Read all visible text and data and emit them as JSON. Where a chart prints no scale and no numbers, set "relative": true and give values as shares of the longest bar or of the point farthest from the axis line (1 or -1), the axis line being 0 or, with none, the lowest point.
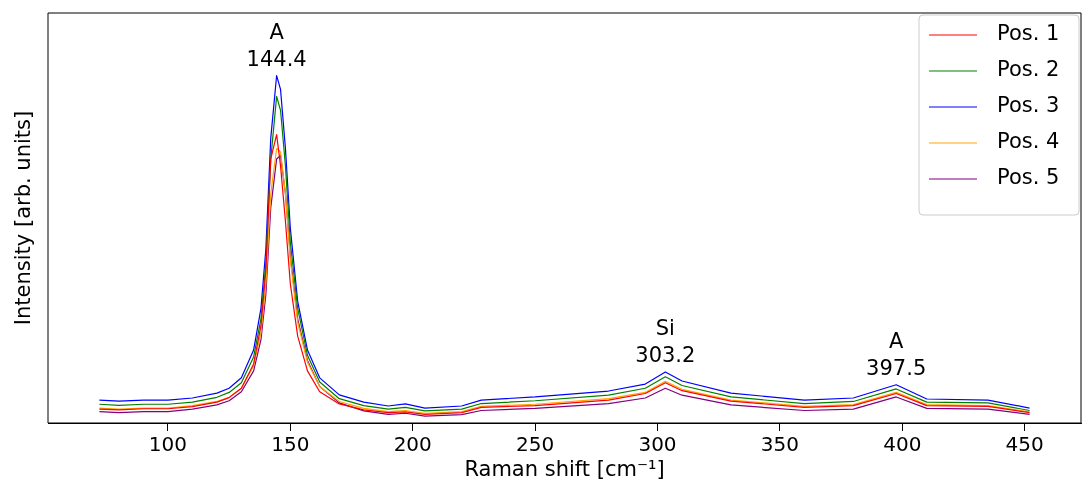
{
  "chart_data": {
    "type": "line",
    "xlabel": "Raman shift [cm⁻¹]",
    "ylabel": "Intensity [arb. units]",
    "relative": true,
    "xlim": [
      51,
      473
    ],
    "xticks": [
      100,
      150,
      200,
      250,
      300,
      350,
      400,
      450
    ],
    "legend": "top right",
    "grid": false,
    "marker": "none",
    "line_style": "solid",
    "x": [
      72,
      80,
      90,
      100,
      110,
      120,
      125,
      130,
      135,
      138,
      140,
      142,
      144.4,
      146,
      148,
      150,
      153,
      157,
      162,
      170,
      180,
      190,
      197,
      205,
      220,
      228,
      250,
      280,
      295,
      303.2,
      310,
      330,
      360,
      380,
      397.5,
      410,
      435,
      452
    ],
    "series": [
      {
        "name": "Pos. 1",
        "color": "#ff0000",
        "values": [
          0.04,
          0.038,
          0.041,
          0.041,
          0.047,
          0.06,
          0.073,
          0.1,
          0.17,
          0.28,
          0.44,
          0.76,
          0.83,
          0.74,
          0.58,
          0.4,
          0.25,
          0.15,
          0.09,
          0.055,
          0.038,
          0.03,
          0.032,
          0.025,
          0.03,
          0.045,
          0.05,
          0.066,
          0.085,
          0.116,
          0.093,
          0.063,
          0.045,
          0.05,
          0.085,
          0.05,
          0.048,
          0.03
        ]
      },
      {
        "name": "Pos. 2",
        "color": "#008000",
        "values": [
          0.054,
          0.051,
          0.054,
          0.054,
          0.06,
          0.074,
          0.088,
          0.116,
          0.19,
          0.3,
          0.46,
          0.76,
          0.94,
          0.9,
          0.74,
          0.52,
          0.33,
          0.195,
          0.118,
          0.07,
          0.05,
          0.04,
          0.045,
          0.035,
          0.04,
          0.056,
          0.064,
          0.08,
          0.1,
          0.133,
          0.108,
          0.075,
          0.056,
          0.062,
          0.098,
          0.06,
          0.058,
          0.036
        ]
      },
      {
        "name": "Pos. 3",
        "color": "#0000ff",
        "values": [
          0.066,
          0.063,
          0.066,
          0.066,
          0.072,
          0.086,
          0.1,
          0.13,
          0.21,
          0.33,
          0.5,
          0.82,
          1.0,
          0.96,
          0.79,
          0.56,
          0.35,
          0.21,
          0.13,
          0.081,
          0.06,
          0.049,
          0.055,
          0.043,
          0.049,
          0.066,
          0.075,
          0.092,
          0.112,
          0.147,
          0.121,
          0.086,
          0.066,
          0.072,
          0.11,
          0.069,
          0.066,
          0.043
        ]
      },
      {
        "name": "Pos. 4",
        "color": "#ffa500",
        "values": [
          0.043,
          0.04,
          0.043,
          0.043,
          0.05,
          0.062,
          0.074,
          0.1,
          0.165,
          0.26,
          0.4,
          0.66,
          0.79,
          0.78,
          0.66,
          0.47,
          0.29,
          0.175,
          0.105,
          0.062,
          0.042,
          0.033,
          0.036,
          0.028,
          0.033,
          0.048,
          0.054,
          0.07,
          0.088,
          0.12,
          0.097,
          0.066,
          0.048,
          0.053,
          0.088,
          0.053,
          0.05,
          0.032
        ]
      },
      {
        "name": "Pos. 5",
        "color": "#800080",
        "values": [
          0.033,
          0.03,
          0.033,
          0.033,
          0.04,
          0.052,
          0.064,
          0.09,
          0.15,
          0.24,
          0.37,
          0.62,
          0.76,
          0.77,
          0.66,
          0.48,
          0.3,
          0.18,
          0.105,
          0.058,
          0.035,
          0.025,
          0.028,
          0.02,
          0.024,
          0.036,
          0.042,
          0.056,
          0.072,
          0.1,
          0.08,
          0.052,
          0.036,
          0.04,
          0.075,
          0.042,
          0.04,
          0.025
        ]
      }
    ],
    "annotations": [
      {
        "text": "A\n144.4",
        "x": 144.4,
        "y": 1.0
      },
      {
        "text": "Si\n303.2",
        "x": 303.2,
        "y": 0.147
      },
      {
        "text": "A\n397.5",
        "x": 397.5,
        "y": 0.11
      }
    ]
  }
}
